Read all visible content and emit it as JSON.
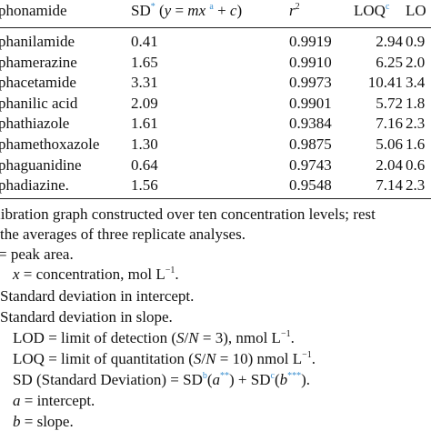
{
  "table": {
    "headers": {
      "name": "phonamide",
      "sd_prefix": "SD",
      "sd_marker": "*",
      "eq_open": "(",
      "eq_y": "y",
      "eq_equals": " = ",
      "eq_mx": "mx",
      "eq_marker": "a",
      "eq_plus": " + ",
      "eq_c": "c",
      "eq_close": ")",
      "r2": "r",
      "r2_exp": "2",
      "loq": "LOQ",
      "loq_marker": "c",
      "lod": "LO"
    },
    "rows": [
      {
        "name": "phanilamide",
        "sd": "0.41",
        "r2": "0.9919",
        "loq": "2.94",
        "lod": "0.9"
      },
      {
        "name": "phamerazine",
        "sd": "1.65",
        "r2": "0.9910",
        "loq": "6.25",
        "lod": "2.0"
      },
      {
        "name": "phacetamide",
        "sd": "3.31",
        "r2": "0.9973",
        "loq": "10.41",
        "lod": "3.4"
      },
      {
        "name": "phanilic acid",
        "sd": "2.09",
        "r2": "0.9901",
        "loq": "5.72",
        "lod": "1.8"
      },
      {
        "name": "phathiazole",
        "sd": "1.61",
        "r2": "0.9384",
        "loq": "7.16",
        "lod": "2.3"
      },
      {
        "name": "phamethoxazole",
        "sd": "1.30",
        "r2": "0.9875",
        "loq": "5.06",
        "lod": "1.6"
      },
      {
        "name": "phaguanidine",
        "sd": "0.64",
        "r2": "0.9743",
        "loq": "2.04",
        "lod": "0.6"
      },
      {
        "name": "phadiazine.",
        "sd": "1.56",
        "r2": "0.9548",
        "loq": "7.14",
        "lod": "2.3"
      }
    ]
  },
  "notes": {
    "n1": "libration graph constructed over ten concentration levels; rest",
    "n2": " the averages of three replicate analyses.",
    "n3": "= peak area.",
    "n4_x": "x",
    "n4_rest": " = concentration, mol L",
    "n4_exp": "−1",
    "n4_end": ".",
    "n5": "Standard deviation in intercept.",
    "n6": "Standard deviation in slope.",
    "n7_a": "LOD = limit of detection (",
    "n7_s": "S",
    "n7_slash": "/",
    "n7_n": "N",
    "n7_b": " = 3), nmol L",
    "n7_exp": "−1",
    "n7_end": ".",
    "n8_a": "LOQ = limit of quantitation (",
    "n8_s": "S",
    "n8_slash": "/",
    "n8_n": "N",
    "n8_b": " = 10) nmol L",
    "n8_exp": "−1",
    "n8_end": ".",
    "n9_a": "SD (Standard Deviation) = SD",
    "n9_b": "b",
    "n9_c": "(",
    "n9_a2": "a",
    "n9_st2": "**",
    "n9_d": ") + SD",
    "n9_cm": "c",
    "n9_e": "(",
    "n9_b2": "b",
    "n9_st3": "***",
    "n9_f": ").",
    "n10_a": "a",
    "n10_rest": " = intercept.",
    "n11_b": "b",
    "n11_rest": " = slope."
  }
}
